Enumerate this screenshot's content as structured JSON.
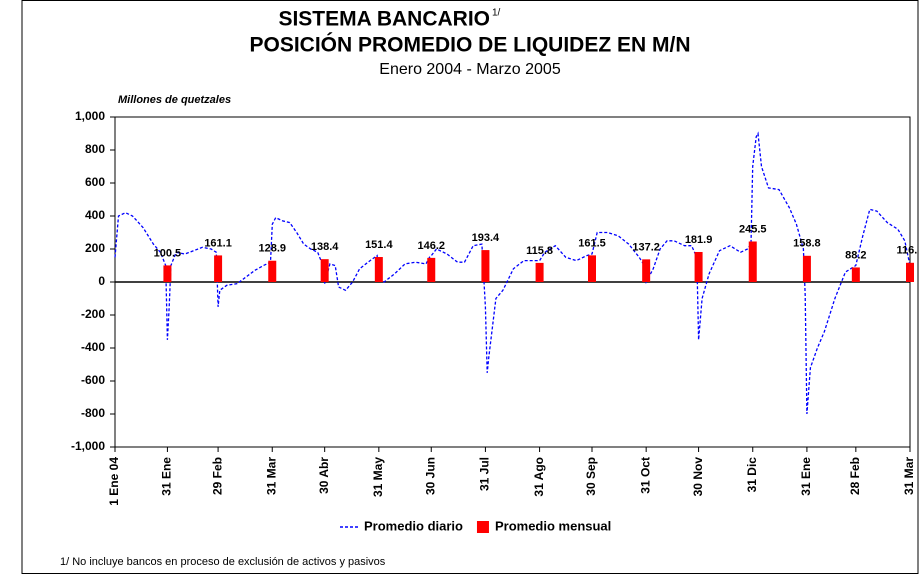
{
  "chart_data": {
    "type": "bar-line",
    "title": "SISTEMA BANCARIO",
    "title_note": "1/",
    "subtitle": "POSICIÓN PROMEDIO DE LIQUIDEZ EN M/N",
    "period": "Enero 2004 - Marzo 2005",
    "y_label": "Millones de quetzales",
    "footnote": "1/ No incluye bancos en proceso de exclusión de activos y pasivos",
    "xlim": [
      0,
      455
    ],
    "xticks": [
      {
        "value": 0,
        "label": "1 Ene 04"
      },
      {
        "value": 30,
        "label": "31 Ene"
      },
      {
        "value": 59,
        "label": "29 Feb"
      },
      {
        "value": 90,
        "label": "31 Mar"
      },
      {
        "value": 120,
        "label": "30 Abr"
      },
      {
        "value": 151,
        "label": "31 May"
      },
      {
        "value": 181,
        "label": "30 Jun"
      },
      {
        "value": 212,
        "label": "31 Jul"
      },
      {
        "value": 243,
        "label": "31 Ago"
      },
      {
        "value": 273,
        "label": "30 Sep"
      },
      {
        "value": 304,
        "label": "31 Oct"
      },
      {
        "value": 334,
        "label": "30 Nov"
      },
      {
        "value": 365,
        "label": "31 Dic"
      },
      {
        "value": 396,
        "label": "31 Ene"
      },
      {
        "value": 424,
        "label": "28 Feb"
      },
      {
        "value": 455,
        "label": "31 Mar"
      }
    ],
    "ylim": [
      -1000,
      1000
    ],
    "yticks": [
      {
        "value": 1000,
        "label": "1,000"
      },
      800,
      600,
      400,
      200,
      0,
      -200,
      -400,
      -600,
      -800,
      {
        "value": -1000,
        "label": "-1,000"
      }
    ],
    "series": [
      {
        "name": "Promedio diario",
        "type": "line",
        "color": "#0000ff",
        "x": [
          0,
          2,
          6,
          10,
          16,
          22,
          26,
          29,
          30,
          31,
          32,
          35,
          40,
          45,
          50,
          55,
          58,
          59,
          60,
          64,
          70,
          75,
          80,
          85,
          89,
          90,
          92,
          96,
          100,
          104,
          108,
          112,
          116,
          119,
          120,
          123,
          126,
          128,
          132,
          136,
          140,
          146,
          150,
          151,
          154,
          160,
          166,
          172,
          178,
          180,
          181,
          184,
          190,
          196,
          200,
          205,
          210,
          212,
          213,
          214,
          218,
          222,
          228,
          234,
          240,
          243,
          246,
          252,
          258,
          264,
          270,
          273,
          276,
          282,
          288,
          294,
          300,
          303,
          304,
          308,
          312,
          316,
          320,
          326,
          330,
          333,
          334,
          336,
          340,
          346,
          352,
          358,
          362,
          364,
          365,
          367,
          368,
          370,
          374,
          380,
          386,
          390,
          394,
          395,
          396,
          398,
          402,
          406,
          412,
          418,
          424,
          428,
          432,
          436,
          442,
          448,
          452,
          455
        ],
        "values": [
          150,
          400,
          420,
          400,
          330,
          230,
          180,
          100,
          -350,
          -150,
          100,
          180,
          170,
          190,
          210,
          200,
          180,
          -150,
          -50,
          -20,
          -10,
          30,
          70,
          100,
          120,
          350,
          390,
          370,
          360,
          300,
          230,
          200,
          180,
          100,
          -10,
          110,
          100,
          -30,
          -50,
          0,
          80,
          130,
          160,
          10,
          0,
          50,
          110,
          120,
          110,
          150,
          160,
          200,
          170,
          120,
          120,
          220,
          230,
          -150,
          -550,
          -450,
          -100,
          -50,
          80,
          130,
          130,
          130,
          180,
          220,
          150,
          130,
          160,
          170,
          300,
          300,
          280,
          230,
          150,
          100,
          0,
          80,
          200,
          250,
          250,
          220,
          220,
          150,
          -350,
          -100,
          50,
          190,
          220,
          180,
          200,
          230,
          700,
          880,
          900,
          700,
          570,
          560,
          450,
          350,
          200,
          -80,
          -800,
          -520,
          -400,
          -300,
          -100,
          60,
          100,
          280,
          440,
          430,
          360,
          320,
          250,
          100
        ]
      },
      {
        "name": "Promedio mensual",
        "type": "bar",
        "color": "#ff0000",
        "x": [
          30,
          59,
          90,
          120,
          151,
          181,
          212,
          243,
          273,
          304,
          334,
          365,
          396,
          424,
          455
        ],
        "values": [
          100.5,
          161.1,
          128.9,
          138.4,
          151.4,
          146.2,
          193.4,
          115.8,
          161.5,
          137.2,
          181.9,
          245.5,
          158.8,
          88.2,
          116.4
        ]
      }
    ]
  }
}
